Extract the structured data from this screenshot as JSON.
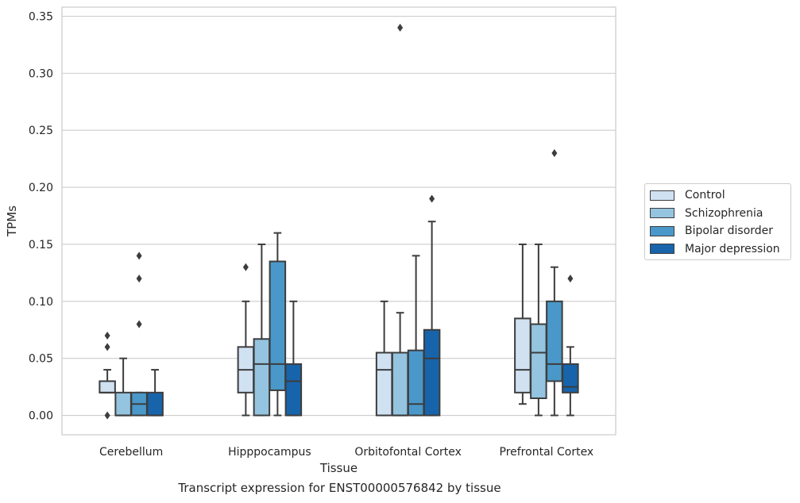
{
  "chart_data": {
    "type": "box",
    "xlabel": "Tissue",
    "ylabel": "TPMs",
    "caption": "Transcript expression for ENST00000576842 by tissue",
    "ylim": [
      -0.017,
      0.358
    ],
    "yticks": [
      "0.00",
      "0.05",
      "0.10",
      "0.15",
      "0.20",
      "0.25",
      "0.30",
      "0.35"
    ],
    "grid": "horizontal",
    "legend_position": "right",
    "categories": [
      "Cerebellum",
      "Hipppocampus",
      "Orbitofontal Cortex",
      "Prefrontal Cortex"
    ],
    "series": [
      {
        "name": "Control",
        "color": "#d0e1f2",
        "boxes": [
          {
            "whislo": 0.02,
            "q1": 0.02,
            "med": 0.02,
            "q3": 0.03,
            "whishi": 0.04,
            "fliers": [
              0.07,
              0.06,
              0.0
            ]
          },
          {
            "whislo": 0.0,
            "q1": 0.02,
            "med": 0.04,
            "q3": 0.06,
            "whishi": 0.1,
            "fliers": [
              0.13
            ]
          },
          {
            "whislo": 0.0,
            "q1": 0.0,
            "med": 0.04,
            "q3": 0.055,
            "whishi": 0.1,
            "fliers": []
          },
          {
            "whislo": 0.01,
            "q1": 0.02,
            "med": 0.04,
            "q3": 0.085,
            "whishi": 0.15,
            "fliers": []
          }
        ]
      },
      {
        "name": "Schizophrenia",
        "color": "#94c4df",
        "boxes": [
          {
            "whislo": 0.0,
            "q1": 0.0,
            "med": 0.0,
            "q3": 0.02,
            "whishi": 0.05,
            "fliers": []
          },
          {
            "whislo": 0.0,
            "q1": 0.0,
            "med": 0.045,
            "q3": 0.067,
            "whishi": 0.15,
            "fliers": []
          },
          {
            "whislo": 0.0,
            "q1": 0.0,
            "med": 0.0,
            "q3": 0.055,
            "whishi": 0.09,
            "fliers": [
              0.34
            ]
          },
          {
            "whislo": 0.0,
            "q1": 0.015,
            "med": 0.055,
            "q3": 0.08,
            "whishi": 0.15,
            "fliers": []
          }
        ]
      },
      {
        "name": "Bipolar disorder",
        "color": "#4a98c9",
        "boxes": [
          {
            "whislo": 0.0,
            "q1": 0.0,
            "med": 0.01,
            "q3": 0.02,
            "whishi": 0.02,
            "fliers": [
              0.14,
              0.12,
              0.08
            ]
          },
          {
            "whislo": 0.0,
            "q1": 0.022,
            "med": 0.045,
            "q3": 0.135,
            "whishi": 0.16,
            "fliers": []
          },
          {
            "whislo": 0.0,
            "q1": 0.0,
            "med": 0.01,
            "q3": 0.057,
            "whishi": 0.14,
            "fliers": []
          },
          {
            "whislo": 0.0,
            "q1": 0.03,
            "med": 0.045,
            "q3": 0.1,
            "whishi": 0.13,
            "fliers": [
              0.23
            ]
          }
        ]
      },
      {
        "name": "Major depression",
        "color": "#1764ab",
        "boxes": [
          {
            "whislo": 0.0,
            "q1": 0.0,
            "med": 0.0,
            "q3": 0.02,
            "whishi": 0.04,
            "fliers": []
          },
          {
            "whislo": 0.0,
            "q1": 0.0,
            "med": 0.03,
            "q3": 0.045,
            "whishi": 0.1,
            "fliers": []
          },
          {
            "whislo": 0.0,
            "q1": 0.0,
            "med": 0.05,
            "q3": 0.075,
            "whishi": 0.17,
            "fliers": [
              0.19
            ]
          },
          {
            "whislo": 0.0,
            "q1": 0.02,
            "med": 0.025,
            "q3": 0.045,
            "whishi": 0.06,
            "fliers": [
              0.12
            ]
          }
        ]
      }
    ]
  }
}
